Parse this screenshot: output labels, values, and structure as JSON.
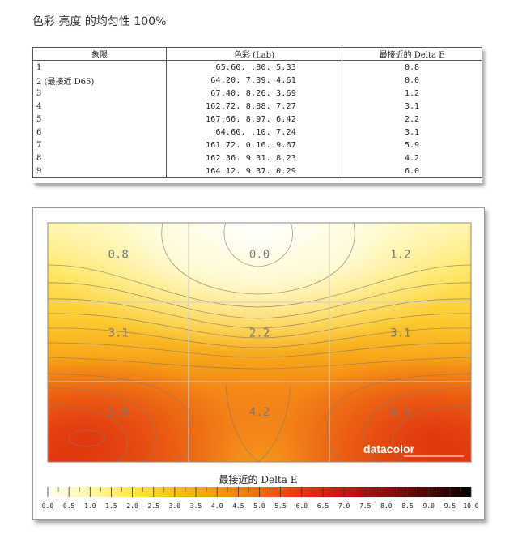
{
  "page": {
    "title": "色彩 亮度 的均匀性 100%"
  },
  "table": {
    "headers": [
      "象限",
      "色彩 (Lab)",
      "最接近的 Delta E"
    ],
    "rows": [
      {
        "q": "1",
        "lab": "65.60.    .80.    5.33",
        "de": "0.8"
      },
      {
        "q": "2 (最接近 D65)",
        "lab": "64.20.   7.39.    4.61",
        "de": "0.0"
      },
      {
        "q": "3",
        "lab": "67.40.   8.26.    3.69",
        "de": "1.2"
      },
      {
        "q": "4",
        "lab": "162.72.   8.88.    7.27",
        "de": "3.1"
      },
      {
        "q": "5",
        "lab": "167.66.   8.97.    6.42",
        "de": "2.2"
      },
      {
        "q": "6",
        "lab": "64.60.    .10.    7.24",
        "de": "3.1"
      },
      {
        "q": "7",
        "lab": "161.72.   0.16.    9.67",
        "de": "5.9"
      },
      {
        "q": "8",
        "lab": "162.36.   9.31.    8.23",
        "de": "4.2"
      },
      {
        "q": "9",
        "lab": "164.12.   9.37.    0.29",
        "de": "6.0"
      }
    ]
  },
  "chart_data": {
    "type": "heatmap",
    "grid_rows": 3,
    "grid_cols": 3,
    "values": [
      [
        0.8,
        0.0,
        1.2
      ],
      [
        3.1,
        2.2,
        3.1
      ],
      [
        5.9,
        4.2,
        6.0
      ]
    ],
    "labels": [
      "0.8",
      "0.0",
      "1.2",
      "3.1",
      "2.2",
      "3.1",
      "5.9",
      "4.2",
      "6.0"
    ],
    "colorbar_title": "最接近的 Delta E",
    "colorbar_ticks": [
      "0.0",
      "0.5",
      "1.0",
      "1.5",
      "2.0",
      "2.5",
      "3.0",
      "3.5",
      "4.0",
      "4.5",
      "5.0",
      "5.5",
      "6.0",
      "6.5",
      "7.0",
      "7.5",
      "8.0",
      "8.5",
      "9.0",
      "9.5",
      "10.0"
    ],
    "colorbar_range": [
      0,
      10
    ],
    "colors": [
      "#fffff4",
      "#fff8a8",
      "#ffe84a",
      "#f8c020",
      "#f39a10",
      "#ee6e0e",
      "#e4360e",
      "#c01a10",
      "#8c0c0c",
      "#500606",
      "#000000"
    ],
    "logo": "datacolor"
  }
}
